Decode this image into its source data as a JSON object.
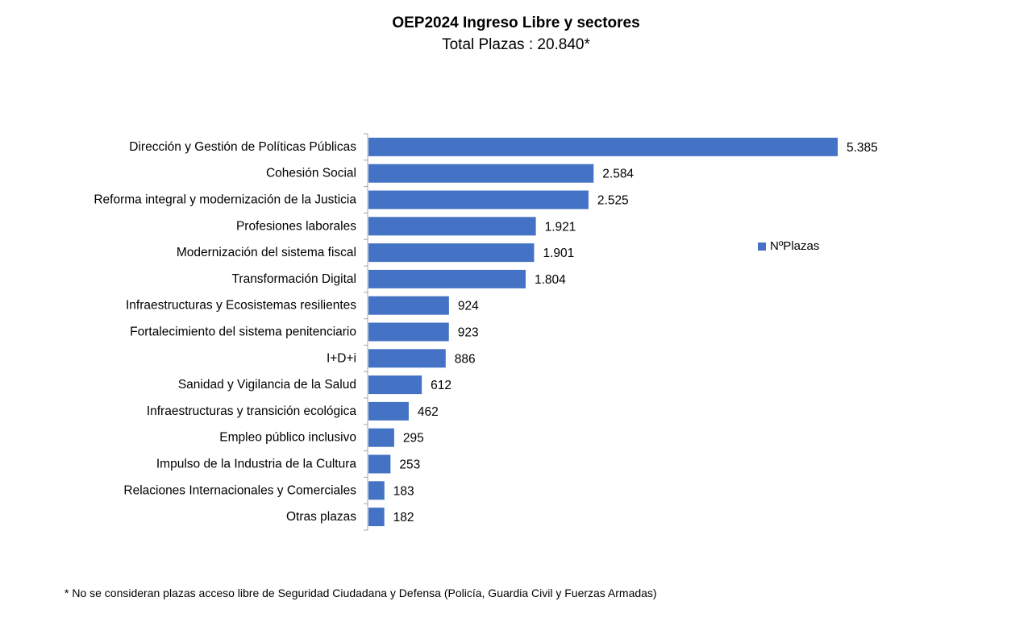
{
  "chart_data": {
    "type": "bar",
    "orientation": "horizontal",
    "title": "OEP2024 Ingreso Libre y sectores",
    "subtitle": "Total Plazas : 20.840*",
    "categories": [
      "Dirección y Gestión de Políticas Públicas",
      "Cohesión Social",
      "Reforma integral y modernización de la Justicia",
      "Profesiones laborales",
      "Modernización del sistema fiscal",
      "Transformación Digital",
      "Infraestructuras y Ecosistemas resilientes",
      "Fortalecimiento del sistema penitenciario",
      "I+D+i",
      "Sanidad y Vigilancia de la Salud",
      "Infraestructuras y transición ecológica",
      "Empleo público inclusivo",
      "Impulso de la Industria de la Cultura",
      "Relaciones Internacionales y Comerciales",
      "Otras plazas"
    ],
    "series": [
      {
        "name": "NºPlazas",
        "values": [
          5385,
          2584,
          2525,
          1921,
          1901,
          1804,
          924,
          923,
          886,
          612,
          462,
          295,
          253,
          183,
          182
        ],
        "labels": [
          "5.385",
          "2.584",
          "2.525",
          "1.921",
          "1.901",
          "1.804",
          "924",
          "923",
          "886",
          "612",
          "462",
          "295",
          "253",
          "183",
          "182"
        ]
      }
    ],
    "legend_position": "right",
    "grid": false,
    "xlabel": "",
    "ylabel": "",
    "bar_color": "#4472c4",
    "footnote": "* No se consideran plazas acceso libre de Seguridad Ciudadana y Defensa (Policía, Guardia Civil y Fuerzas Armadas)"
  }
}
